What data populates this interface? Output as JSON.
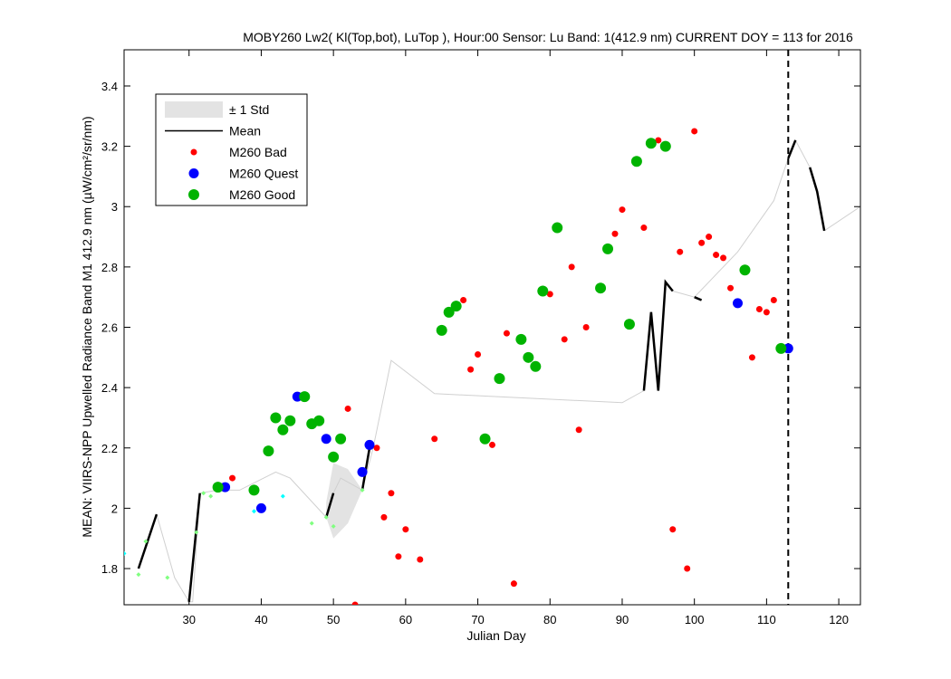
{
  "chart_data": {
    "type": "scatter",
    "title": "MOBY260   Lw2( Kl(Top,bot), LuTop ),   Hour:00 Sensor: Lu Band: 1(412.9 nm)   CURRENT DOY = 113 for 2016",
    "xlabel": "Julian Day",
    "ylabel": "MEAN: VIIRS-NPP Upwelled Radiance Band M1 412.9 nm (µW/cm²/sr/nm)",
    "xlim": [
      21,
      123
    ],
    "ylim": [
      1.68,
      3.52
    ],
    "x_ticks": [
      30,
      40,
      50,
      60,
      70,
      80,
      90,
      100,
      110,
      120
    ],
    "y_ticks": [
      1.8,
      2,
      2.2,
      2.4,
      2.6,
      2.8,
      3,
      3.2,
      3.4
    ],
    "grid": false,
    "legend_position": "top-left",
    "current_doy": 113,
    "colors": {
      "bad": "#ff0000",
      "quest": "#0000ff",
      "good": "#00b300",
      "std_fill": "#e3e3e3",
      "mean": "#000000",
      "light_green": "#80ff80",
      "cyan": "#00ffff",
      "thin_line": "#d0d0d0"
    },
    "legend": [
      {
        "label": "± 1 Std",
        "kind": "patch",
        "color": "#e3e3e3"
      },
      {
        "label": "Mean",
        "kind": "line",
        "color": "#000000"
      },
      {
        "label": "M260 Bad",
        "kind": "dot",
        "color": "#ff0000",
        "r": 3.5
      },
      {
        "label": "M260 Quest",
        "kind": "dot",
        "color": "#0000ff",
        "r": 5.5
      },
      {
        "label": "M260 Good",
        "kind": "dot",
        "color": "#00b300",
        "r": 6
      }
    ],
    "thin_line": [
      [
        23,
        1.8
      ],
      [
        25.5,
        1.98
      ],
      [
        28,
        1.77
      ],
      [
        30,
        1.69
      ],
      [
        30.5,
        1.69
      ],
      [
        31.5,
        2.05
      ],
      [
        34,
        2.06
      ],
      [
        37,
        2.06
      ],
      [
        42,
        2.12
      ],
      [
        44,
        2.1
      ],
      [
        49,
        1.97
      ],
      [
        50,
        2.05
      ],
      [
        51,
        2.1
      ],
      [
        54,
        2.06
      ],
      [
        55.5,
        2.2
      ],
      [
        58,
        2.49
      ],
      [
        64,
        2.38
      ],
      [
        90,
        2.35
      ],
      [
        93,
        2.39
      ],
      [
        94,
        2.65
      ],
      [
        95,
        2.39
      ],
      [
        96,
        2.75
      ],
      [
        97,
        2.72
      ],
      [
        100,
        2.7
      ],
      [
        106,
        2.85
      ],
      [
        111,
        3.02
      ],
      [
        113,
        3.16
      ],
      [
        114,
        3.22
      ],
      [
        116,
        3.13
      ],
      [
        117,
        3.05
      ],
      [
        118,
        2.92
      ],
      [
        123,
        3.0
      ]
    ],
    "std_band": {
      "upper": [
        [
          49,
          2.02
        ],
        [
          50,
          2.15
        ],
        [
          52,
          2.13
        ],
        [
          54,
          2.06
        ]
      ],
      "lower": [
        [
          54,
          2.06
        ],
        [
          52,
          1.95
        ],
        [
          50,
          1.9
        ],
        [
          49,
          1.97
        ]
      ]
    },
    "mean_segments": [
      [
        [
          23,
          1.8
        ],
        [
          25.5,
          1.98
        ]
      ],
      [
        [
          30,
          1.69
        ],
        [
          31.5,
          2.05
        ]
      ],
      [
        [
          49,
          1.97
        ],
        [
          50,
          2.05
        ]
      ],
      [
        [
          54,
          2.06
        ],
        [
          55,
          2.2
        ]
      ],
      [
        [
          93,
          2.39
        ],
        [
          94,
          2.65
        ],
        [
          95,
          2.39
        ],
        [
          96,
          2.75
        ],
        [
          97,
          2.72
        ]
      ],
      [
        [
          100,
          2.7
        ],
        [
          101,
          2.69
        ]
      ],
      [
        [
          113,
          3.16
        ],
        [
          114,
          3.22
        ]
      ],
      [
        [
          116,
          3.13
        ],
        [
          117,
          3.05
        ],
        [
          118,
          2.92
        ]
      ]
    ],
    "series": [
      {
        "name": "M260 Bad",
        "color": "#ff0000",
        "r": 3.5,
        "points": [
          [
            36,
            2.1
          ],
          [
            52,
            2.33
          ],
          [
            53,
            1.68
          ],
          [
            56,
            2.2
          ],
          [
            57,
            1.97
          ],
          [
            58,
            2.05
          ],
          [
            59,
            1.84
          ],
          [
            60,
            1.93
          ],
          [
            62,
            1.83
          ],
          [
            64,
            2.23
          ],
          [
            68,
            2.69
          ],
          [
            69,
            2.46
          ],
          [
            70,
            2.51
          ],
          [
            72,
            2.21
          ],
          [
            74,
            2.58
          ],
          [
            75,
            1.75
          ],
          [
            80,
            2.71
          ],
          [
            82,
            2.56
          ],
          [
            83,
            2.8
          ],
          [
            84,
            2.26
          ],
          [
            85,
            2.6
          ],
          [
            89,
            2.91
          ],
          [
            90,
            2.99
          ],
          [
            93,
            2.93
          ],
          [
            95,
            3.22
          ],
          [
            97,
            1.93
          ],
          [
            98,
            2.85
          ],
          [
            99,
            1.8
          ],
          [
            100,
            3.25
          ],
          [
            101,
            2.88
          ],
          [
            102,
            2.9
          ],
          [
            103,
            2.84
          ],
          [
            104,
            2.83
          ],
          [
            105,
            2.73
          ],
          [
            108,
            2.5
          ],
          [
            109,
            2.66
          ],
          [
            110,
            2.65
          ],
          [
            111,
            2.69
          ]
        ]
      },
      {
        "name": "M260 Quest",
        "color": "#0000ff",
        "r": 5.5,
        "points": [
          [
            35,
            2.07
          ],
          [
            40,
            2.0
          ],
          [
            45,
            2.37
          ],
          [
            49,
            2.23
          ],
          [
            54,
            2.12
          ],
          [
            55,
            2.21
          ],
          [
            106,
            2.68
          ],
          [
            113,
            2.53
          ]
        ]
      },
      {
        "name": "M260 Good",
        "color": "#00b300",
        "r": 6,
        "points": [
          [
            34,
            2.07
          ],
          [
            39,
            2.06
          ],
          [
            41,
            2.19
          ],
          [
            42,
            2.3
          ],
          [
            43,
            2.26
          ],
          [
            44,
            2.29
          ],
          [
            46,
            2.37
          ],
          [
            47,
            2.28
          ],
          [
            48,
            2.29
          ],
          [
            50,
            2.17
          ],
          [
            51,
            2.23
          ],
          [
            65,
            2.59
          ],
          [
            66,
            2.65
          ],
          [
            67,
            2.67
          ],
          [
            71,
            2.23
          ],
          [
            73,
            2.43
          ],
          [
            76,
            2.56
          ],
          [
            77,
            2.5
          ],
          [
            78,
            2.47
          ],
          [
            79,
            2.72
          ],
          [
            81,
            2.93
          ],
          [
            87,
            2.73
          ],
          [
            88,
            2.86
          ],
          [
            91,
            2.61
          ],
          [
            92,
            3.15
          ],
          [
            94,
            3.21
          ],
          [
            96,
            3.2
          ],
          [
            107,
            2.79
          ],
          [
            112,
            2.53
          ]
        ]
      },
      {
        "name": "",
        "color": "#80ff80",
        "r": 2.5,
        "shape": "diamond",
        "points": [
          [
            23,
            1.78
          ],
          [
            24,
            1.89
          ],
          [
            27,
            1.77
          ],
          [
            31,
            1.92
          ],
          [
            32,
            2.05
          ],
          [
            33,
            2.04
          ],
          [
            47,
            1.95
          ],
          [
            49,
            1.97
          ],
          [
            50,
            1.94
          ],
          [
            54,
            2.06
          ]
        ]
      },
      {
        "name": "",
        "color": "#00ffff",
        "r": 2.5,
        "shape": "diamond",
        "points": [
          [
            21,
            1.85
          ],
          [
            39,
            1.99
          ],
          [
            43,
            2.04
          ]
        ]
      }
    ]
  }
}
